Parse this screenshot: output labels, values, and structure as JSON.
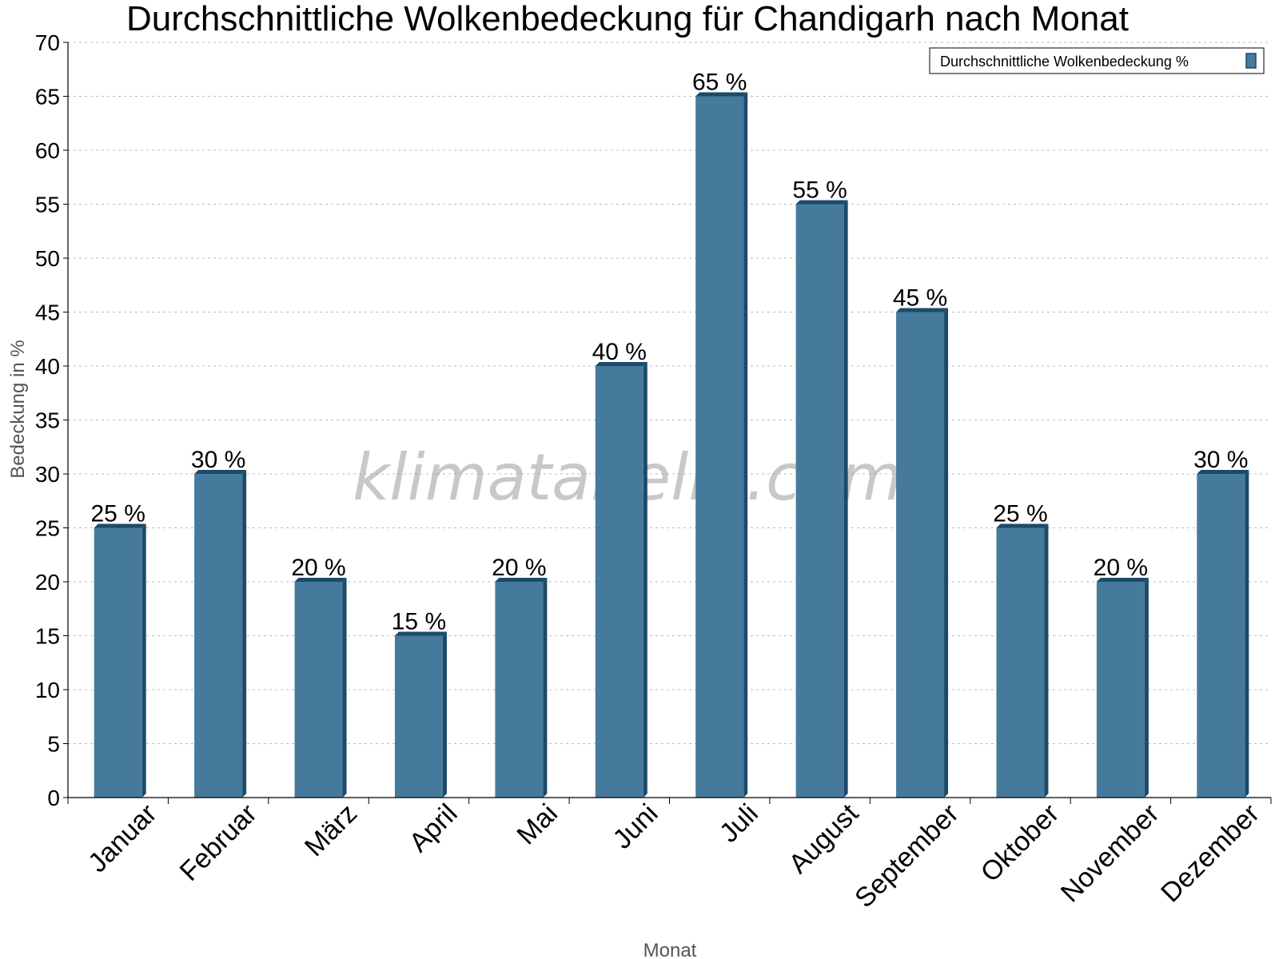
{
  "chart_data": {
    "type": "bar",
    "title": "Durchschnittliche Wolkenbedeckung für Chandigarh nach Monat",
    "xlabel": "Monat",
    "ylabel": "Bedeckung in %",
    "categories": [
      "Januar",
      "Februar",
      "März",
      "April",
      "Mai",
      "Juni",
      "Juli",
      "August",
      "September",
      "Oktober",
      "November",
      "Dezember"
    ],
    "series": [
      {
        "name": "Durchschnittliche Wolkenbedeckung %",
        "values": [
          25,
          30,
          20,
          15,
          20,
          40,
          65,
          55,
          45,
          25,
          20,
          30
        ],
        "color": "#467a9c",
        "edge_color": "#1c4a6a"
      }
    ],
    "data_labels": [
      "25 %",
      "30 %",
      "20 %",
      "15 %",
      "20 %",
      "40 %",
      "65 %",
      "55 %",
      "45 %",
      "25 %",
      "20 %",
      "30 %"
    ],
    "ylim": [
      0,
      70
    ],
    "yticks": [
      "0",
      "5",
      "10",
      "15",
      "20",
      "25",
      "30",
      "35",
      "40",
      "45",
      "50",
      "55",
      "60",
      "65",
      "70"
    ],
    "grid": true,
    "legend": "top-right",
    "watermark": "klimatabelle.com"
  }
}
